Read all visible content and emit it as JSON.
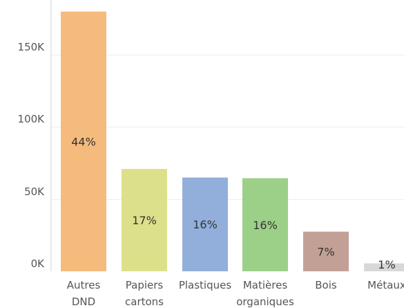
{
  "chart_data": {
    "type": "bar",
    "title": "",
    "xlabel": "",
    "ylabel": "",
    "categories": [
      [
        "Autres",
        "DND"
      ],
      [
        "Papiers",
        "cartons"
      ],
      [
        "Plastiques"
      ],
      [
        "Matières",
        "organiques"
      ],
      [
        "Bois"
      ],
      [
        "Métaux"
      ]
    ],
    "values": [
      180000,
      71000,
      65000,
      64500,
      27500,
      5500
    ],
    "data_labels": [
      "44%",
      "17%",
      "16%",
      "16%",
      "7%",
      "1%"
    ],
    "colors": [
      "#f5bb7d",
      "#dde08a",
      "#92afdc",
      "#9ccf88",
      "#c3a096",
      "#d8d8d8"
    ],
    "ylim": [
      0,
      188000
    ],
    "yticks": [
      0,
      50000,
      100000,
      150000
    ],
    "ytick_labels": [
      "0K",
      "50K",
      "100K",
      "150K"
    ],
    "grid": true,
    "gridline_color": "#ececec"
  }
}
